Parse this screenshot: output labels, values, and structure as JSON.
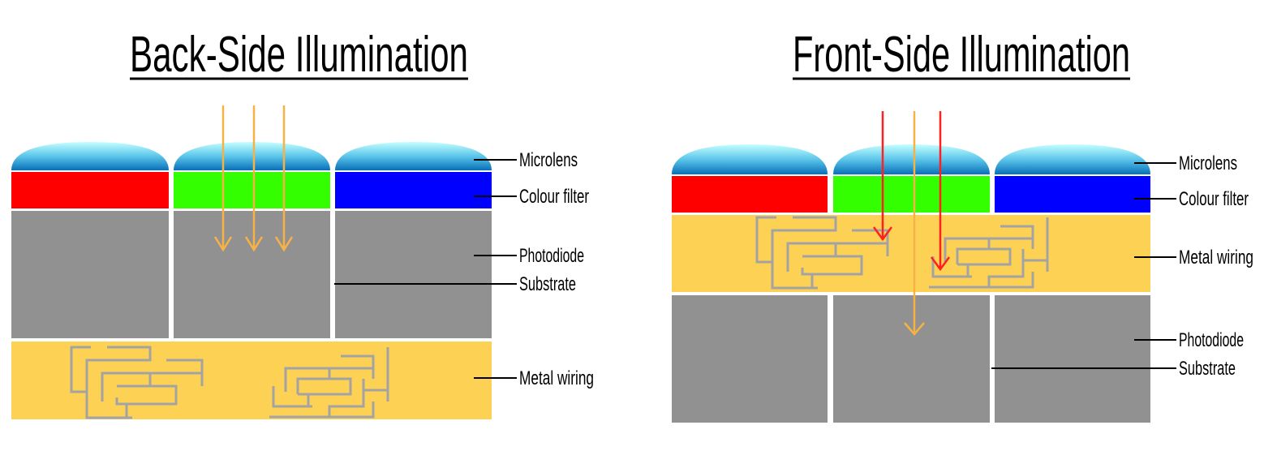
{
  "panels": {
    "back": {
      "title": "Back-Side Illumination",
      "labels": {
        "microlens": "Microlens",
        "colour_filter": "Colour filter",
        "photodiode": "Photodiode",
        "substrate": "Substrate",
        "metal_wiring": "Metal wiring"
      }
    },
    "front": {
      "title": "Front-Side Illumination",
      "labels": {
        "microlens": "Microlens",
        "colour_filter": "Colour filter",
        "metal_wiring": "Metal wiring",
        "photodiode": "Photodiode",
        "substrate": "Substrate"
      }
    }
  },
  "colors": {
    "filter_red": "#FF0000",
    "filter_green": "#33FF00",
    "filter_blue": "#0000FF",
    "photodiode": "#919191",
    "metal_layer": "#FDD254",
    "wiring": "#A3A3A3",
    "light_ray": "#F7B245",
    "blocked_ray": "#FF2020"
  }
}
